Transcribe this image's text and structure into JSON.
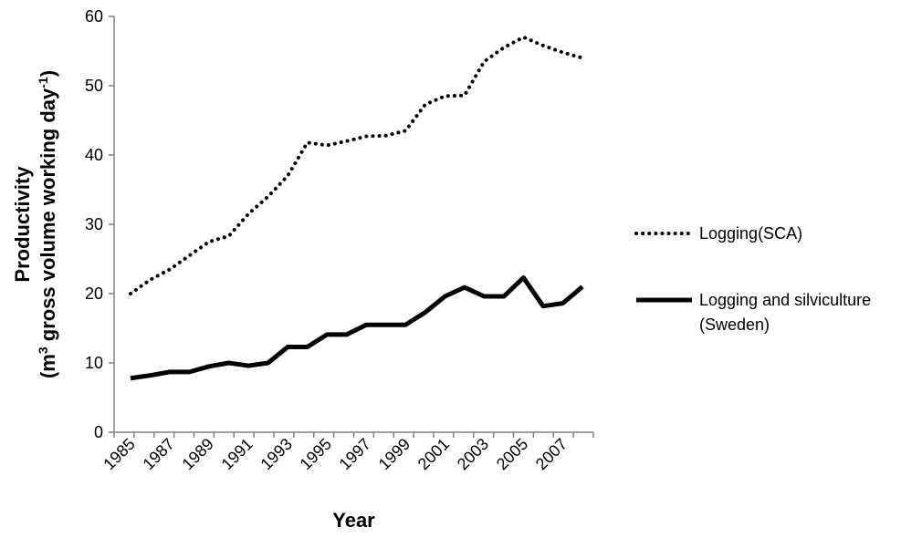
{
  "chart_data": {
    "type": "line",
    "xlabel": "Year",
    "ylabel_line1": "Productivity",
    "ylabel_line2_prefix": "(m",
    "ylabel_line2_sup1": "3",
    "ylabel_line2_mid": " gross volume working day",
    "ylabel_line2_sup2": "-1",
    "ylabel_line2_suffix": ")",
    "ylim": [
      0,
      60
    ],
    "yticks": [
      0,
      10,
      20,
      30,
      40,
      50,
      60
    ],
    "xticks": [
      "1985",
      "1987",
      "1989",
      "1991",
      "1993",
      "1995",
      "1997",
      "1999",
      "2001",
      "2003",
      "2005",
      "2007"
    ],
    "x": [
      1985,
      1986,
      1987,
      1988,
      1989,
      1990,
      1991,
      1992,
      1993,
      1994,
      1995,
      1996,
      1997,
      1998,
      1999,
      2000,
      2001,
      2002,
      2003,
      2004,
      2005,
      2006,
      2007,
      2008
    ],
    "grid": false,
    "legend_position": "right",
    "series": [
      {
        "name": "Logging(SCA)",
        "style": "dotted",
        "color": "#000000",
        "values": [
          20,
          22,
          23.5,
          25.5,
          27.5,
          28.3,
          31.5,
          34,
          37,
          41.8,
          41.4,
          42,
          42.7,
          42.8,
          43.5,
          47.3,
          48.5,
          48.6,
          53.5,
          55.5,
          57,
          55.8,
          54.8,
          54
        ]
      },
      {
        "name": "Logging and silviculture",
        "name_line2": "(Sweden)",
        "style": "solid",
        "color": "#000000",
        "values": [
          7.8,
          8.2,
          8.7,
          8.7,
          9.5,
          10,
          9.6,
          10,
          12.3,
          12.3,
          14.1,
          14.1,
          15.5,
          15.5,
          15.5,
          17.3,
          19.6,
          20.9,
          19.6,
          19.6,
          22.3,
          18.2,
          18.6,
          21
        ]
      }
    ]
  }
}
